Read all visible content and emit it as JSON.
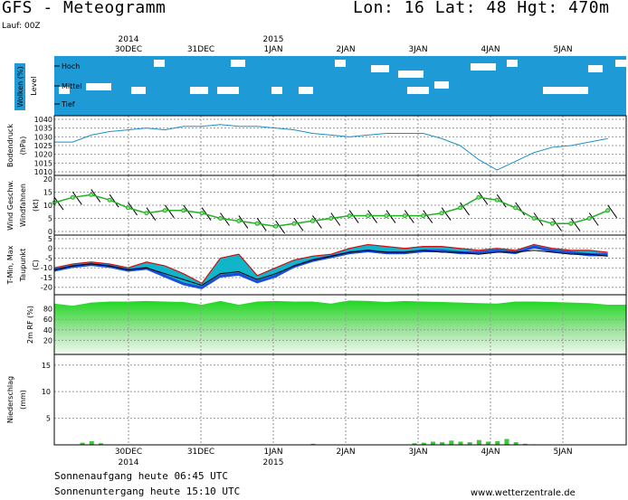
{
  "header": {
    "title": "GFS - Meteogramm",
    "location": "Lon: 16 Lat: 48 Hgt: 470m",
    "run": "Lauf: 00Z"
  },
  "timeline": {
    "days": [
      "30DEC",
      "31DEC",
      "1JAN",
      "2JAN",
      "3JAN",
      "4JAN",
      "5JAN"
    ],
    "years": [
      {
        "label": "2014",
        "day": "30DEC"
      },
      {
        "label": "2015",
        "day": "1JAN"
      }
    ]
  },
  "footer": {
    "sunrise": "Sonnenaufgang heute 06:45 UTC",
    "sunset": "Sonnenuntergang heute 15:10 UTC",
    "site": "www.wetterzentrale.de"
  },
  "colors": {
    "cloud_bg": "#1e9ad6",
    "pressure": "#1e90c8",
    "rh_green": "#22c41e",
    "precip": "#3ac83a",
    "dew_fill": "#11b5c9",
    "cold_fill": "#2232e0",
    "warm_fill": "#d01010",
    "wind_green": "#20b020",
    "wind_marker": "#90e090"
  },
  "chart_data": [
    {
      "type": "heatmap",
      "panel": "clouds",
      "ylabel": "Wolken (%)",
      "sublabel": "Level",
      "levels": [
        "Hoch",
        "Mittel",
        "Tief"
      ]
    },
    {
      "type": "line",
      "panel": "pressure",
      "ylabel": "Bodendruck",
      "unit": "(hPa)",
      "ylim": [
        1010,
        1040
      ],
      "yticks": [
        1040,
        1035,
        1030,
        1025,
        1020,
        1015,
        1010
      ],
      "x": [
        0,
        2,
        4,
        6,
        8,
        10,
        12,
        14,
        16,
        18,
        20,
        22,
        24,
        26,
        28,
        30,
        32,
        34,
        36,
        38,
        40,
        42,
        44,
        46,
        48,
        50,
        52,
        54,
        56,
        58,
        60
      ],
      "values": [
        1027,
        1027,
        1031,
        1033,
        1034,
        1035,
        1034,
        1036,
        1036,
        1037,
        1036,
        1036,
        1035,
        1034,
        1032,
        1031,
        1030,
        1031,
        1032,
        1032,
        1032,
        1029,
        1025,
        1017,
        1011,
        1016,
        1021,
        1024,
        1025,
        1027,
        1029
      ]
    },
    {
      "type": "line",
      "panel": "wind",
      "ylabel": "Wind Geschw.",
      "sublabel": "Windfahnen",
      "unit": "(kt)",
      "ylim": [
        0,
        20
      ],
      "yticks": [
        20,
        15,
        10,
        5,
        0
      ],
      "x": [
        0,
        2,
        4,
        6,
        8,
        10,
        12,
        14,
        16,
        18,
        20,
        22,
        24,
        26,
        28,
        30,
        32,
        34,
        36,
        38,
        40,
        42,
        44,
        46,
        48,
        50,
        52,
        54,
        56,
        58,
        60
      ],
      "values": [
        11,
        13,
        14,
        12,
        9,
        7,
        8,
        8,
        7,
        5,
        4,
        3,
        2,
        3,
        4,
        5,
        6,
        6,
        6,
        6,
        6,
        7,
        9,
        13,
        12,
        9,
        5,
        3,
        3,
        5,
        8
      ]
    },
    {
      "type": "area",
      "panel": "temperature",
      "ylabel": "T-Min, Max",
      "sublabel": "Taupunkt",
      "unit": "(C)",
      "ylim": [
        -22,
        5
      ],
      "yticks": [
        5,
        0,
        -5,
        -10,
        -15,
        -20
      ],
      "x": [
        0,
        2,
        4,
        6,
        8,
        10,
        12,
        14,
        16,
        18,
        20,
        22,
        24,
        26,
        28,
        30,
        32,
        34,
        36,
        38,
        40,
        42,
        44,
        46,
        48,
        50,
        52,
        54,
        56,
        58,
        60
      ],
      "series": [
        {
          "name": "T-Max",
          "values": [
            -10,
            -8,
            -7,
            -8,
            -10,
            -7,
            -9,
            -13,
            -18,
            -5,
            -3,
            -14,
            -10,
            -6,
            -4,
            -3,
            0,
            2,
            1,
            0,
            1,
            1,
            0,
            -1,
            0,
            -1,
            2,
            0,
            -1,
            -1,
            -2
          ]
        },
        {
          "name": "T-Min",
          "values": [
            -12,
            -10,
            -9,
            -10,
            -12,
            -11,
            -15,
            -19,
            -21,
            -15,
            -14,
            -18,
            -15,
            -10,
            -7,
            -5,
            -3,
            -2,
            -3,
            -3,
            -2,
            -2,
            -3,
            -3,
            -2,
            -3,
            0,
            -2,
            -3,
            -4,
            -4
          ]
        },
        {
          "name": "Taupunkt",
          "values": [
            -11,
            -9,
            -8,
            -9,
            -11,
            -10,
            -13,
            -16,
            -19,
            -13,
            -12,
            -16,
            -13,
            -9,
            -6,
            -4,
            -2,
            -1,
            -2,
            -2,
            -1,
            -2,
            -2,
            -3,
            -2,
            -2,
            -1,
            -2,
            -3,
            -3,
            -4
          ]
        }
      ]
    },
    {
      "type": "area",
      "panel": "humidity",
      "ylabel": "2m RF (%)",
      "ylim": [
        0,
        100
      ],
      "yticks": [
        80,
        60,
        40,
        20
      ],
      "x": [
        0,
        2,
        4,
        6,
        8,
        10,
        12,
        14,
        16,
        18,
        20,
        22,
        24,
        26,
        28,
        30,
        32,
        34,
        36,
        38,
        40,
        42,
        44,
        46,
        48,
        50,
        52,
        54,
        56,
        58,
        60
      ],
      "values": [
        90,
        86,
        92,
        94,
        94,
        95,
        94,
        93,
        88,
        95,
        88,
        94,
        95,
        94,
        94,
        90,
        96,
        95,
        93,
        95,
        94,
        93,
        92,
        91,
        90,
        94,
        94,
        93,
        92,
        91,
        88
      ]
    },
    {
      "type": "bar",
      "panel": "precipitation",
      "ylabel": "Niederschlag",
      "unit": "(mm)",
      "ylim": [
        0,
        17
      ],
      "yticks": [
        15,
        10,
        5
      ],
      "x": [
        3,
        4,
        5,
        28,
        39,
        40,
        41,
        42,
        43,
        44,
        45,
        46,
        47,
        48,
        49,
        50,
        51,
        52
      ],
      "values": [
        0.4,
        0.7,
        0.3,
        0.2,
        0.3,
        0.4,
        0.6,
        0.5,
        0.8,
        0.6,
        0.5,
        0.9,
        0.6,
        0.7,
        1.1,
        0.5,
        0.2,
        0.1
      ]
    }
  ]
}
